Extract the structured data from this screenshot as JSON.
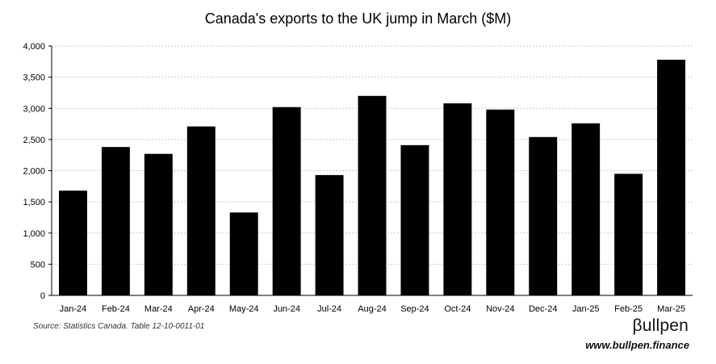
{
  "chart_data": {
    "type": "bar",
    "title": "Canada's exports to the UK jump in March ($M)",
    "categories": [
      "Jan-24",
      "Feb-24",
      "Mar-24",
      "Apr-24",
      "May-24",
      "Jun-24",
      "Jul-24",
      "Aug-24",
      "Sep-24",
      "Oct-24",
      "Nov-24",
      "Dec-24",
      "Jan-25",
      "Feb-25",
      "Mar-25"
    ],
    "values": [
      1680,
      2380,
      2270,
      2710,
      1330,
      3020,
      1930,
      3200,
      2410,
      3080,
      2980,
      2540,
      2760,
      1950,
      3780
    ],
    "ylim": [
      0,
      4000
    ],
    "yticks": [
      "0",
      "500",
      "1,000",
      "1,500",
      "2,000",
      "2,500",
      "3,000",
      "3,500",
      "4,000"
    ],
    "ytick_values": [
      0,
      500,
      1000,
      1500,
      2000,
      2500,
      3000,
      3500,
      4000
    ],
    "grid": true,
    "bar_color": "#000000",
    "grid_color": "#c8c8c8"
  },
  "footer": {
    "source": "Source: Statistics Canada. Table 12-10-0011-01",
    "brand": "βullpen",
    "url": "www.bullpen.finance"
  }
}
